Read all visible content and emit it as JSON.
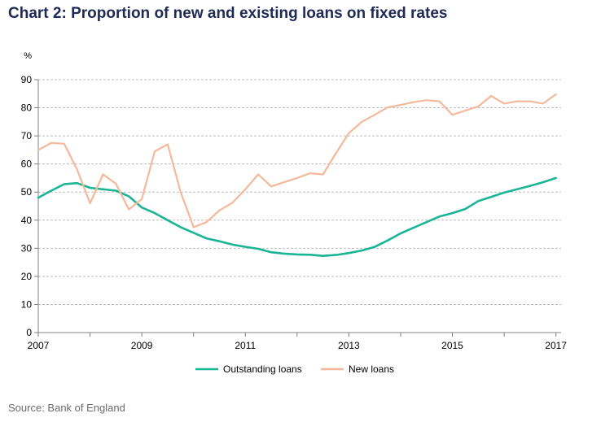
{
  "title": "Chart 2: Proportion of new and existing loans on fixed rates",
  "source": "Source: Bank of England",
  "colors": {
    "outstanding": "#1ab496",
    "new": "#f4b89a",
    "grid": "#bdbdbd",
    "axis": "#808080"
  },
  "chart_data": {
    "type": "line",
    "yunit": "%",
    "ylim": [
      0,
      90
    ],
    "yticks": [
      0,
      10,
      20,
      30,
      40,
      50,
      60,
      70,
      80,
      90
    ],
    "xlim": [
      2007,
      2017.1
    ],
    "xticks": [
      2007,
      2009,
      2011,
      2013,
      2015,
      2017
    ],
    "grid": "horizontal dashed",
    "legend_position": "bottom",
    "series": [
      {
        "name": "Outstanding loans",
        "x": [
          2007.0,
          2007.25,
          2007.5,
          2007.75,
          2008.0,
          2008.25,
          2008.5,
          2008.75,
          2009.0,
          2009.25,
          2009.5,
          2009.75,
          2010.0,
          2010.25,
          2010.5,
          2010.75,
          2011.0,
          2011.25,
          2011.5,
          2011.75,
          2012.0,
          2012.25,
          2012.5,
          2012.75,
          2013.0,
          2013.25,
          2013.5,
          2013.75,
          2014.0,
          2014.25,
          2014.5,
          2014.75,
          2015.0,
          2015.25,
          2015.5,
          2015.75,
          2016.0,
          2016.25,
          2016.5,
          2016.75,
          2017.0
        ],
        "y": [
          48,
          50.5,
          52.8,
          53.2,
          51.5,
          51,
          50.5,
          48.5,
          44.5,
          42.5,
          40,
          37.5,
          35.5,
          33.5,
          32.5,
          31.3,
          30.5,
          29.8,
          28.6,
          28.1,
          27.8,
          27.7,
          27.3,
          27.6,
          28.3,
          29.2,
          30.5,
          32.8,
          35.3,
          37.3,
          39.3,
          41.3,
          42.5,
          44,
          46.8,
          48.3,
          49.8,
          51,
          52.2,
          53.5,
          55
        ]
      },
      {
        "name": "New loans",
        "x": [
          2007.0,
          2007.25,
          2007.5,
          2007.75,
          2008.0,
          2008.25,
          2008.5,
          2008.75,
          2009.0,
          2009.25,
          2009.5,
          2009.75,
          2010.0,
          2010.25,
          2010.5,
          2010.75,
          2011.0,
          2011.25,
          2011.5,
          2011.75,
          2012.0,
          2012.25,
          2012.5,
          2012.75,
          2013.0,
          2013.25,
          2013.5,
          2013.75,
          2014.0,
          2014.25,
          2014.5,
          2014.75,
          2015.0,
          2015.25,
          2015.5,
          2015.75,
          2016.0,
          2016.25,
          2016.5,
          2016.75,
          2017.0
        ],
        "y": [
          65,
          67.5,
          67.2,
          58,
          46,
          56.3,
          53,
          43.8,
          47.5,
          64.5,
          67,
          50,
          37.5,
          39.3,
          43.5,
          46.2,
          51,
          56.3,
          52,
          53.5,
          55,
          56.7,
          56.3,
          63.8,
          71,
          75,
          77.5,
          80.2,
          81,
          82,
          82.7,
          82.3,
          77.5,
          79,
          80.5,
          84.2,
          81.5,
          82.3,
          82.3,
          81.5,
          84.8
        ]
      }
    ]
  }
}
